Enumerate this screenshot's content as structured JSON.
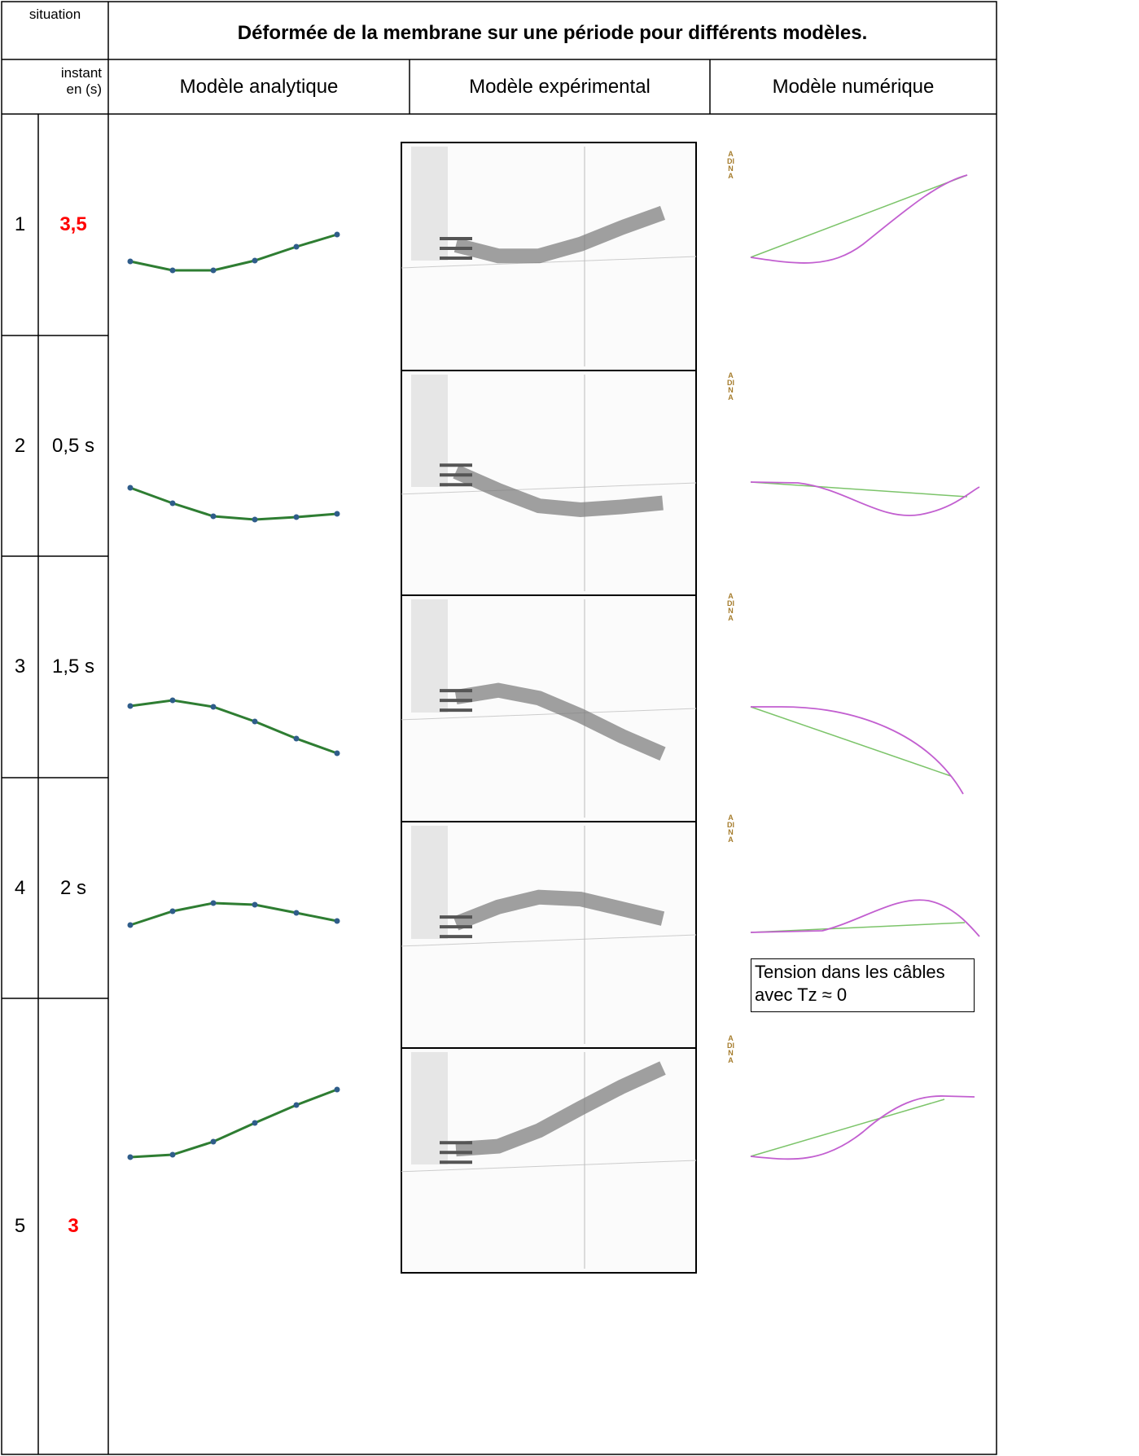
{
  "header": {
    "situation": "situation",
    "title": "Déformée de la membrane sur une période pour différents modèles.",
    "instant": "instant en (s)",
    "columns": [
      "Modèle analytique",
      "Modèle expérimental",
      "Modèle numérique"
    ]
  },
  "rows": [
    {
      "situation": "1",
      "instant": "3,5",
      "color": "#ff0000"
    },
    {
      "situation": "2",
      "instant": "0,5 s"
    },
    {
      "situation": "3",
      "instant": "1,5 s"
    },
    {
      "situation": "4",
      "instant": "2  s"
    },
    {
      "situation": "5",
      "instant": "3",
      "color": "#ff0000"
    }
  ],
  "numeric_logo": "ADINA",
  "note": "Tension dans les câbles avec Tz ≈ 0"
}
